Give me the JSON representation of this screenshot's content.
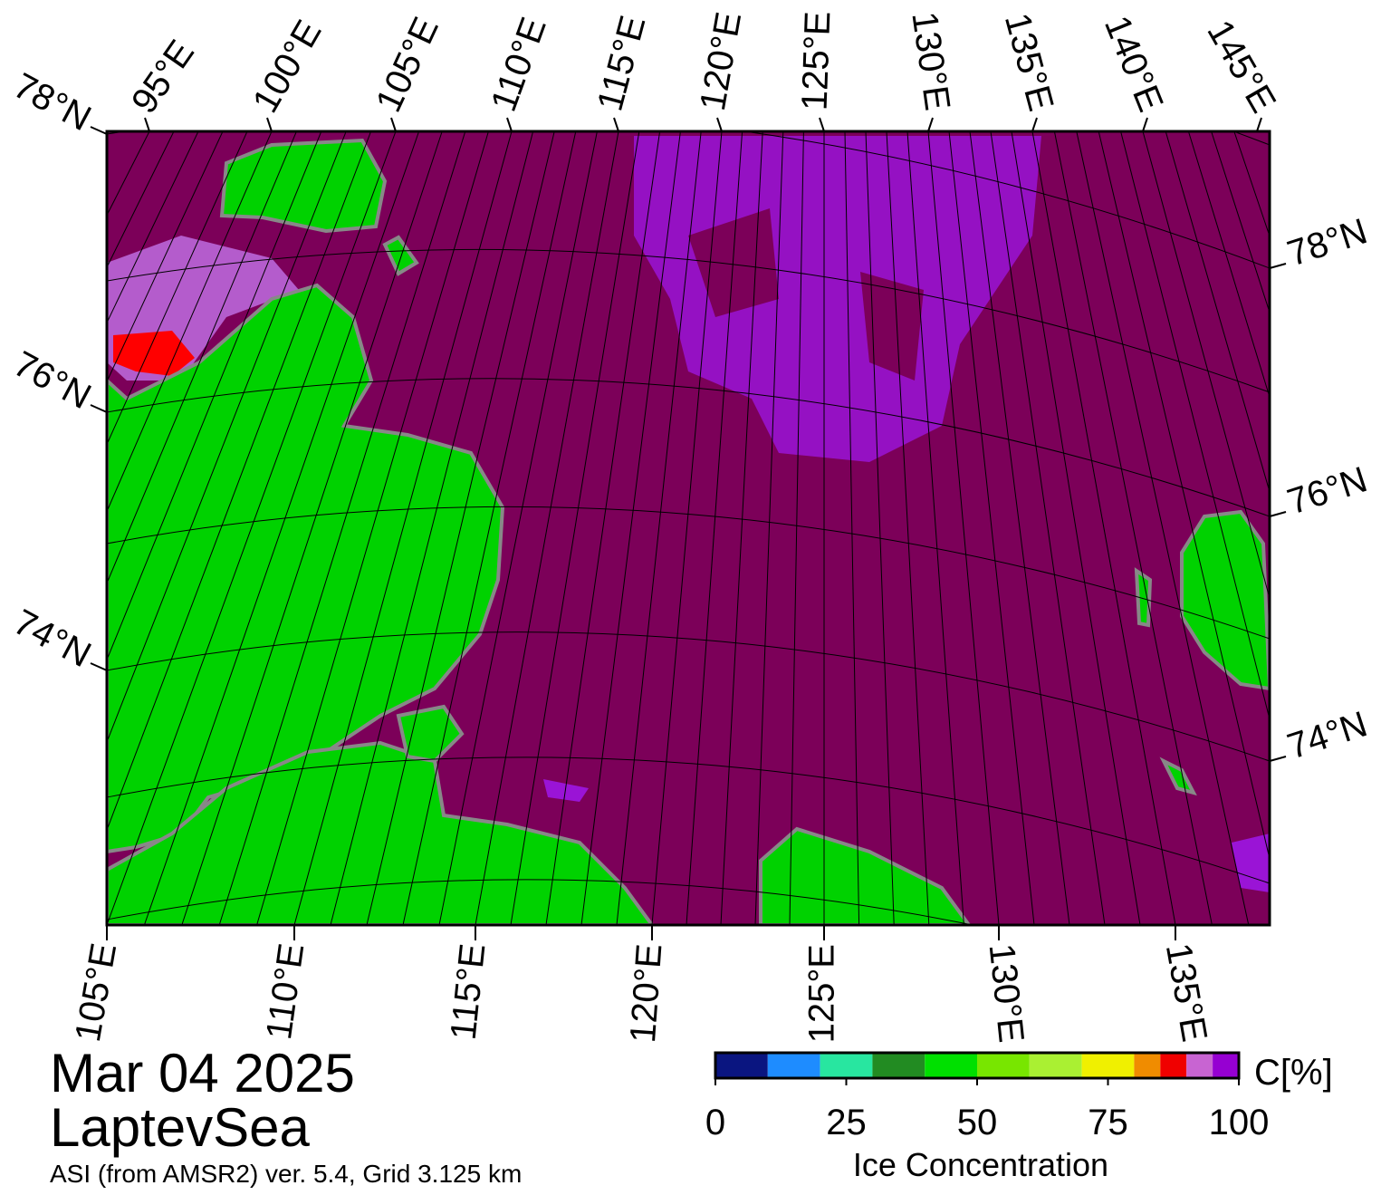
{
  "map": {
    "top_labels": [
      "95°E",
      "100°E",
      "105°E",
      "110°E",
      "115°E",
      "120°E",
      "125°E",
      "130°E",
      "135°E",
      "140°E",
      "145°E"
    ],
    "left_labels": [
      "78°N",
      "76°N",
      "74°N"
    ],
    "right_labels": [
      "78°N",
      "76°N",
      "74°N"
    ],
    "bottom_labels": [
      "105°E",
      "110°E",
      "115°E",
      "120°E",
      "125°E",
      "130°E",
      "135°E"
    ]
  },
  "footer": {
    "date": "Mar 04 2025",
    "region": "LaptevSea",
    "source": "ASI (from AMSR2) ver. 5.4,  Grid 3.125 km"
  },
  "colorbar": {
    "title": "Ice Concentration",
    "unit": "C[%]",
    "bounds": [
      0,
      10,
      20,
      30,
      40,
      50,
      60,
      70,
      80,
      85,
      90,
      95,
      100
    ],
    "colors": [
      "#0a1580",
      "#1e8cff",
      "#28e6a0",
      "#228b22",
      "#00e000",
      "#78e600",
      "#aaf032",
      "#f0f000",
      "#f08c00",
      "#f00000",
      "#c864d2",
      "#9600d2"
    ],
    "ticks": [
      0,
      25,
      50,
      75,
      100
    ]
  }
}
